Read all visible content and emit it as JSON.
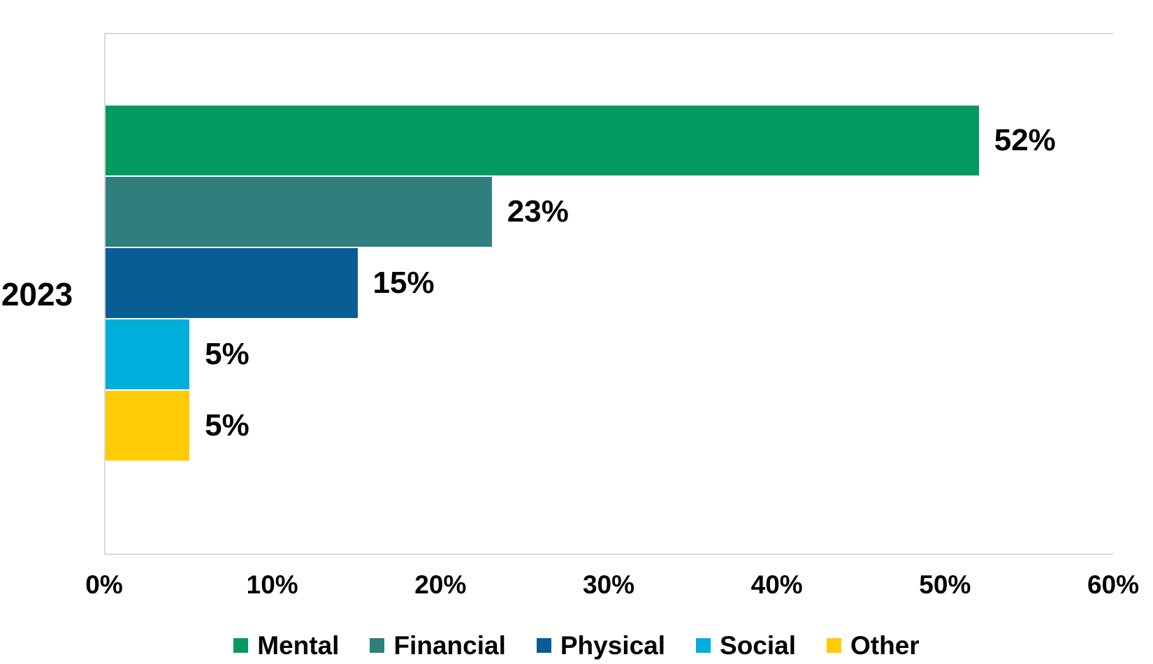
{
  "chart_data": {
    "type": "bar",
    "orientation": "horizontal",
    "title": "",
    "xlabel": "",
    "ylabel": "",
    "categories": [
      "2023"
    ],
    "series": [
      {
        "name": "Mental",
        "value": 52,
        "label": "52%",
        "color": "#029A60"
      },
      {
        "name": "Financial",
        "value": 23,
        "label": "23%",
        "color": "#2E7F7D"
      },
      {
        "name": "Physical",
        "value": 15,
        "label": "15%",
        "color": "#085D95"
      },
      {
        "name": "Social",
        "value": 5,
        "label": "5%",
        "color": "#00AEDB"
      },
      {
        "name": "Other",
        "value": 5,
        "label": "5%",
        "color": "#FFCB05"
      }
    ],
    "x_ticks": [
      "0%",
      "10%",
      "20%",
      "30%",
      "40%",
      "50%",
      "60%"
    ],
    "xlim": [
      0,
      60
    ],
    "grid": false,
    "legend_position": "bottom"
  },
  "colors": {
    "axis_line": "#D9D9D9",
    "text": "#000000",
    "background": "#FFFFFF"
  }
}
